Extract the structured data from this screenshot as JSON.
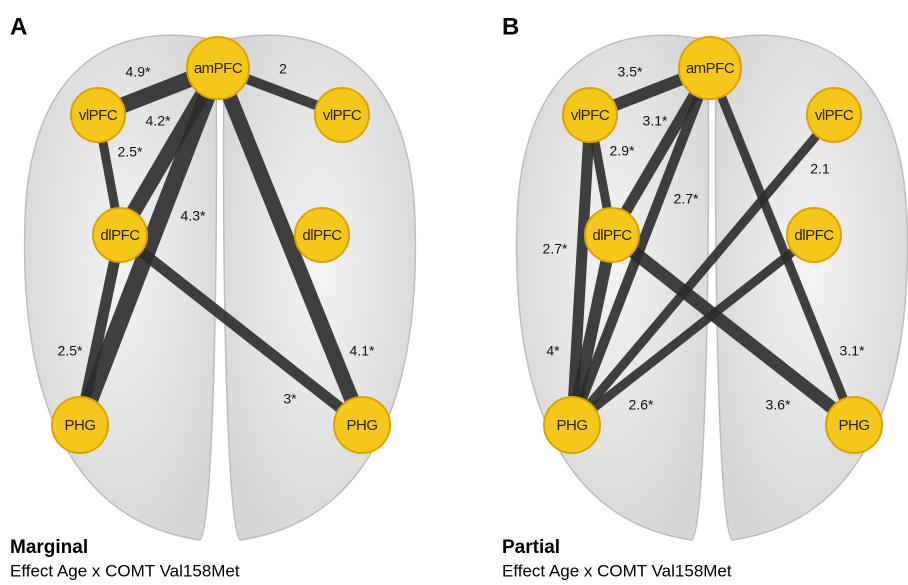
{
  "panels": [
    {
      "letter": "A",
      "caption_title": "Marginal",
      "caption_subtitle": "Effect Age x COMT Val158Met",
      "nodes": [
        {
          "label": "amPFC"
        },
        {
          "label": "vlPFC"
        },
        {
          "label": "vlPFC"
        },
        {
          "label": "dlPFC"
        },
        {
          "label": "dlPFC"
        },
        {
          "label": "PHG"
        },
        {
          "label": "PHG"
        }
      ],
      "edges": [
        {
          "label": "4.9*"
        },
        {
          "label": "2"
        },
        {
          "label": "4.2*"
        },
        {
          "label": "4.3*"
        },
        {
          "label": "4.1*"
        },
        {
          "label": "2.5*"
        },
        {
          "label": "2.5*"
        },
        {
          "label": "3*"
        }
      ]
    },
    {
      "letter": "B",
      "caption_title": "Partial",
      "caption_subtitle": "Effect Age x COMT Val158Met",
      "nodes": [
        {
          "label": "amPFC"
        },
        {
          "label": "vlPFC"
        },
        {
          "label": "vlPFC"
        },
        {
          "label": "dlPFC"
        },
        {
          "label": "dlPFC"
        },
        {
          "label": "PHG"
        },
        {
          "label": "PHG"
        }
      ],
      "edges": [
        {
          "label": "3.5*"
        },
        {
          "label": "3.1*"
        },
        {
          "label": "2.7*"
        },
        {
          "label": "2.9*"
        },
        {
          "label": "2.7*"
        },
        {
          "label": "4*"
        },
        {
          "label": "2.1"
        },
        {
          "label": "2.6*"
        },
        {
          "label": "3.6*"
        },
        {
          "label": "3.1*"
        }
      ]
    }
  ]
}
